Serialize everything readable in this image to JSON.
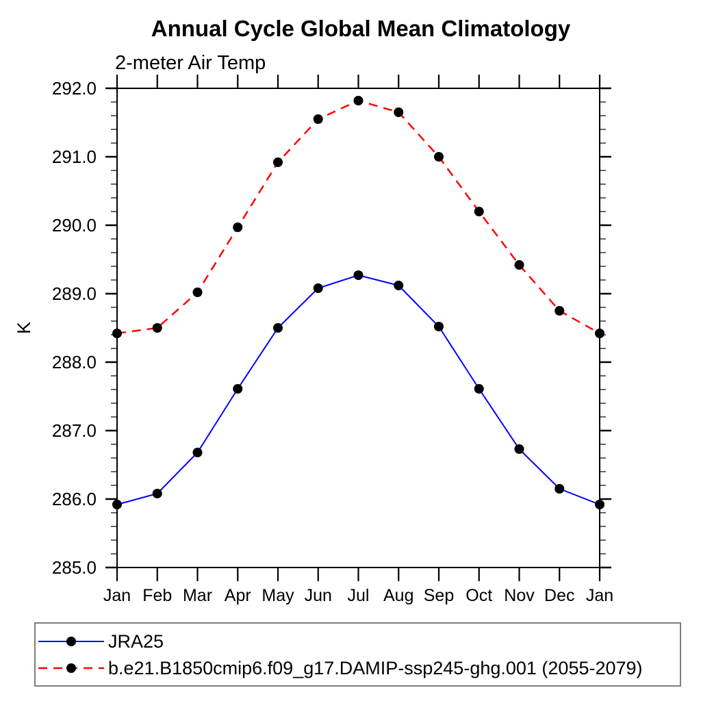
{
  "page": {
    "background_color": "#FFFFFF",
    "text_color": "#000000"
  },
  "chart_data": {
    "type": "line",
    "title": "Annual Cycle Global Mean Climatology",
    "subtitle": "2-meter Air Temp",
    "xlabel": "",
    "ylabel": "K",
    "categories": [
      "Jan",
      "Feb",
      "Mar",
      "Apr",
      "May",
      "Jun",
      "Jul",
      "Aug",
      "Sep",
      "Oct",
      "Nov",
      "Dec",
      "Jan"
    ],
    "ylim": [
      285.0,
      292.0
    ],
    "ytick_major_step": 1.0,
    "ytick_minor_step": 0.2,
    "ytick_labels": [
      "285.0",
      "286.0",
      "287.0",
      "288.0",
      "289.0",
      "290.0",
      "291.0",
      "292.0"
    ],
    "grid": false,
    "tick_direction": "out",
    "legend_position": "bottom-left-boxed",
    "series": [
      {
        "name": "JRA25",
        "color": "#0000FF",
        "line_style": "solid",
        "line_width": 2,
        "marker": "circle",
        "marker_color": "#000000",
        "marker_radius": 7,
        "values": [
          285.92,
          286.08,
          286.68,
          287.61,
          288.5,
          289.08,
          289.27,
          289.12,
          288.52,
          287.61,
          286.73,
          286.15,
          285.92
        ]
      },
      {
        "name": "b.e21.B1850cmip6.f09_g17.DAMIP-ssp245-ghg.001 (2055-2079)",
        "color": "#FF0000",
        "line_style": "dashed",
        "line_width": 2.5,
        "marker": "circle",
        "marker_color": "#000000",
        "marker_radius": 7,
        "values": [
          288.42,
          288.5,
          289.02,
          289.97,
          290.92,
          291.55,
          291.82,
          291.65,
          291.0,
          290.2,
          289.42,
          288.75,
          288.42
        ]
      }
    ],
    "colors": {
      "axis": "#000000",
      "minor_tick": "#555555",
      "legend_border": "#7D7D7D"
    }
  }
}
